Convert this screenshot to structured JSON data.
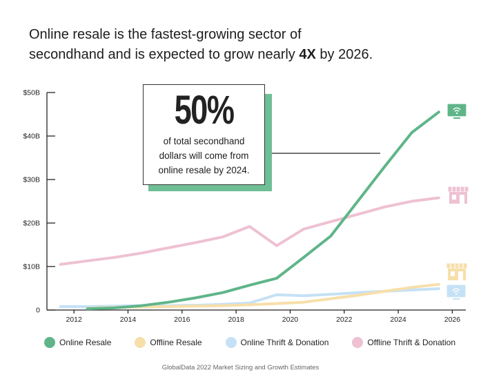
{
  "headline": {
    "line1": "Online resale is the fastest-growing sector of",
    "line2_pre": "secondhand and is expected to grow nearly ",
    "line2_bold": "4X",
    "line2_post": " by 2026."
  },
  "callout": {
    "big": "50%",
    "line1": "of total secondhand",
    "line2": "dollars will come from",
    "line3": "online resale by 2024."
  },
  "source": "GlobalData 2022 Market Sizing and Growth Estimates",
  "chart_data": {
    "type": "line",
    "x_tick_labels": [
      "2012",
      "2014",
      "2016",
      "2018",
      "2020",
      "2022",
      "2024",
      "2026"
    ],
    "x_ticks": [
      2012,
      2014,
      2016,
      2018,
      2020,
      2022,
      2024,
      2026
    ],
    "y_tick_labels": [
      "0",
      "$10B",
      "$20B",
      "$30B",
      "$40B",
      "$50B"
    ],
    "y_ticks": [
      0,
      10,
      20,
      30,
      40,
      50
    ],
    "xlim": [
      2011,
      2026.5
    ],
    "ylim": [
      0,
      50
    ],
    "series": [
      {
        "name": "Online Resale",
        "color": "#5fb589",
        "icon": "monitor-icon",
        "x": [
          2012.5,
          2013.5,
          2014.5,
          2015.5,
          2016.5,
          2017.5,
          2018.5,
          2019.5,
          2020.5,
          2021.5,
          2022.5,
          2023.5,
          2024.5,
          2025.5
        ],
        "y": [
          0.3,
          0.5,
          1.0,
          1.8,
          2.8,
          4.0,
          5.7,
          7.3,
          12.1,
          17.0,
          25.0,
          33.0,
          40.8,
          45.5
        ]
      },
      {
        "name": "Offline Resale",
        "color": "#f7dfaa",
        "icon": "store-icon",
        "x": [
          2012.5,
          2013.5,
          2014.5,
          2015.5,
          2016.5,
          2017.5,
          2018.5,
          2019.5,
          2020.5,
          2021.5,
          2022.5,
          2023.5,
          2024.5,
          2025.5
        ],
        "y": [
          0.4,
          0.6,
          0.7,
          0.8,
          0.9,
          1.0,
          1.2,
          1.5,
          1.8,
          2.6,
          3.4,
          4.3,
          5.2,
          5.9
        ]
      },
      {
        "name": "Online Thrift & Donation",
        "color": "#c5e1f5",
        "icon": "monitor-icon",
        "x": [
          2011.5,
          2012.5,
          2013.5,
          2014.5,
          2015.5,
          2016.5,
          2017.5,
          2018.5,
          2019.5,
          2020.5,
          2021.5,
          2022.5,
          2023.5,
          2024.5,
          2025.5
        ],
        "y": [
          0.8,
          0.8,
          0.9,
          1.0,
          1.0,
          1.1,
          1.3,
          1.6,
          3.5,
          3.3,
          3.6,
          4.0,
          4.3,
          4.6,
          4.9
        ]
      },
      {
        "name": "Offline Thrift & Donation",
        "color": "#eec1d3",
        "icon": "store-icon",
        "x": [
          2011.5,
          2012.5,
          2013.5,
          2014.5,
          2015.5,
          2016.5,
          2017.5,
          2018.5,
          2019.5,
          2020.5,
          2021.5,
          2022.5,
          2023.5,
          2024.5,
          2025.5
        ],
        "y": [
          10.5,
          11.3,
          12.1,
          13.1,
          14.3,
          15.5,
          16.8,
          19.2,
          14.8,
          18.6,
          20.3,
          22.0,
          23.7,
          25.0,
          25.8
        ]
      }
    ],
    "grid": false,
    "legend_position": "bottom"
  }
}
